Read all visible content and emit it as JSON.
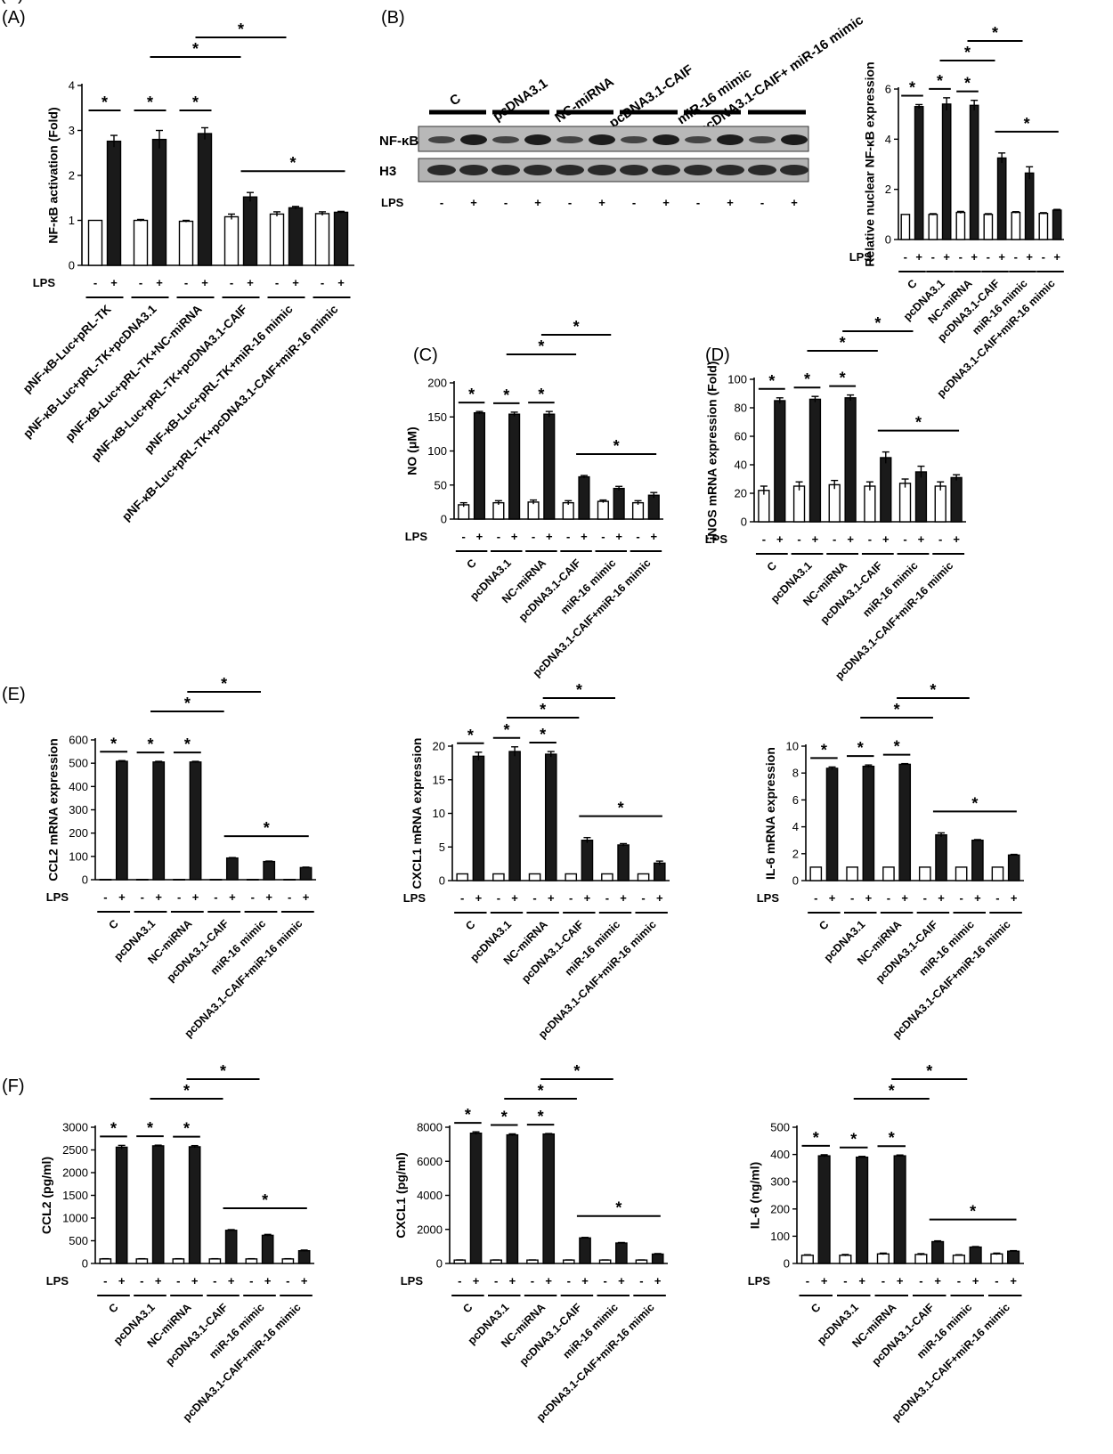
{
  "chart_data": [
    {
      "id": "A",
      "panel_label": "(A)",
      "type": "bar",
      "ylabel": "NF-κB activation (Fold)",
      "ylim": [
        0,
        4
      ],
      "yticks": [
        "0",
        "1",
        "2",
        "3",
        "4"
      ],
      "lps_label": "LPS",
      "lps_minus": "-",
      "lps_plus": "+",
      "categories": [
        "pNF-κB-Luc+pRL-TK",
        "pNF-κB-Luc+pRL-TK+pcDNA3.1",
        "pNF-κB-Luc+pRL-TK+NC-miRNA",
        "pNF-κB-Luc+pRL-TK+pcDNA3.1-CAIF",
        "pNF-κB-Luc+pRL-TK+miR-16 mimic",
        "pNF-κB-Luc+pRL-TK+pcDNA3.1-CAIF+miR-16 mimic"
      ],
      "series": [
        {
          "lps": "-",
          "color": "#ffffff",
          "values": [
            1.0,
            1.0,
            0.98,
            1.08,
            1.14,
            1.15
          ],
          "errors": [
            0.0,
            0.02,
            0.02,
            0.06,
            0.05,
            0.04
          ]
        },
        {
          "lps": "+",
          "color": "#1a1a1a",
          "values": [
            2.76,
            2.8,
            2.93,
            1.52,
            1.28,
            1.18
          ],
          "errors": [
            0.13,
            0.2,
            0.13,
            0.1,
            0.03,
            0.02
          ]
        }
      ],
      "star": "*"
    },
    {
      "id": "B",
      "panel_label": "(B)",
      "type": "bar",
      "ylabel": "Relative nuclear NF-κB expression",
      "ylim": [
        0,
        6
      ],
      "yticks": [
        "0",
        "2",
        "4",
        "6"
      ],
      "lps_label": "LPS",
      "lps_minus": "-",
      "lps_plus": "+",
      "categories": [
        "C",
        "pcDNA3.1",
        "NC-miRNA",
        "pcDNA3.1-CAIF",
        "miR-16 mimic",
        "pcDNA3.1-CAIF+miR-16 mimic"
      ],
      "series": [
        {
          "lps": "-",
          "color": "#ffffff",
          "values": [
            1.0,
            1.0,
            1.08,
            1.0,
            1.08,
            1.04
          ],
          "errors": [
            0.0,
            0.03,
            0.04,
            0.03,
            0.03,
            0.03
          ]
        },
        {
          "lps": "+",
          "color": "#1a1a1a",
          "values": [
            5.3,
            5.4,
            5.35,
            3.25,
            2.65,
            1.17
          ],
          "errors": [
            0.08,
            0.25,
            0.2,
            0.2,
            0.25,
            0.03
          ]
        }
      ],
      "star": "*"
    },
    {
      "id": "C",
      "panel_label": "(C)",
      "type": "bar",
      "ylabel": "NO (μM)",
      "ylim": [
        0,
        200
      ],
      "yticks": [
        "0",
        "50",
        "100",
        "150",
        "200"
      ],
      "lps_label": "LPS",
      "lps_minus": "-",
      "lps_plus": "+",
      "categories": [
        "C",
        "pcDNA3.1",
        "NC-miRNA",
        "pcDNA3.1-CAIF",
        "miR-16 mimic",
        "pcDNA3.1-CAIF+miR-16 mimic"
      ],
      "series": [
        {
          "lps": "-",
          "color": "#ffffff",
          "values": [
            21,
            24,
            25,
            24,
            26,
            24
          ],
          "errors": [
            3,
            3,
            3,
            3,
            2,
            3
          ]
        },
        {
          "lps": "+",
          "color": "#1a1a1a",
          "values": [
            156,
            154,
            154,
            62,
            45,
            35
          ],
          "errors": [
            2,
            3,
            4,
            2,
            3,
            4
          ]
        }
      ],
      "star": "*"
    },
    {
      "id": "D",
      "panel_label": "(D)",
      "type": "bar",
      "ylabel": "iNOS mRNA expression (Fold)",
      "ylim": [
        0,
        100
      ],
      "yticks": [
        "0",
        "20",
        "40",
        "60",
        "80",
        "100"
      ],
      "lps_label": "LPS",
      "lps_minus": "-",
      "lps_plus": "+",
      "categories": [
        "C",
        "pcDNA3.1",
        "NC-miRNA",
        "pcDNA3.1-CAIF",
        "miR-16 mimic",
        "pcDNA3.1-CAIF+miR-16 mimic"
      ],
      "series": [
        {
          "lps": "-",
          "color": "#ffffff",
          "values": [
            22,
            25,
            26,
            25,
            27,
            25
          ],
          "errors": [
            3,
            3,
            3,
            3,
            3,
            3
          ]
        },
        {
          "lps": "+",
          "color": "#1a1a1a",
          "values": [
            85,
            86,
            87,
            45,
            35,
            31
          ],
          "errors": [
            2,
            2,
            2,
            4,
            4,
            2
          ]
        }
      ],
      "star": "*"
    },
    {
      "id": "E1",
      "panel_label": "(E)",
      "type": "bar",
      "ylabel": "CCL2 mRNA expression",
      "ylim": [
        0,
        600
      ],
      "yticks": [
        "0",
        "100",
        "200",
        "300",
        "400",
        "500",
        "600"
      ],
      "lps_label": "LPS",
      "lps_minus": "-",
      "lps_plus": "+",
      "categories": [
        "C",
        "pcDNA3.1",
        "NC-miRNA",
        "pcDNA3.1-CAIF",
        "miR-16 mimic",
        "pcDNA3.1-CAIF+miR-16 mimic"
      ],
      "series": [
        {
          "lps": "-",
          "color": "#ffffff",
          "values": [
            1,
            1,
            1,
            1,
            1,
            1
          ],
          "errors": [
            0,
            0,
            0,
            0,
            0,
            0
          ]
        },
        {
          "lps": "+",
          "color": "#1a1a1a",
          "values": [
            508,
            505,
            505,
            93,
            78,
            52
          ],
          "errors": [
            3,
            3,
            3,
            2,
            2,
            2
          ]
        }
      ],
      "star": "*"
    },
    {
      "id": "E2",
      "panel_label": "",
      "type": "bar",
      "ylabel": "CXCL1 mRNA expression",
      "ylim": [
        0,
        20
      ],
      "yticks": [
        "0",
        "5",
        "10",
        "15",
        "20"
      ],
      "lps_label": "LPS",
      "lps_minus": "-",
      "lps_plus": "+",
      "categories": [
        "C",
        "pcDNA3.1",
        "NC-miRNA",
        "pcDNA3.1-CAIF",
        "miR-16 mimic",
        "pcDNA3.1-CAIF+miR-16 mimic"
      ],
      "series": [
        {
          "lps": "-",
          "color": "#ffffff",
          "values": [
            1,
            1,
            1,
            1,
            1,
            1
          ],
          "errors": [
            0,
            0,
            0,
            0,
            0,
            0
          ]
        },
        {
          "lps": "+",
          "color": "#1a1a1a",
          "values": [
            18.5,
            19.2,
            18.8,
            6.0,
            5.3,
            2.6
          ],
          "errors": [
            0.6,
            0.7,
            0.4,
            0.4,
            0.2,
            0.3
          ]
        }
      ],
      "star": "*"
    },
    {
      "id": "E3",
      "panel_label": "",
      "type": "bar",
      "ylabel": "IL-6 mRNA expression",
      "ylim": [
        0,
        10
      ],
      "yticks": [
        "0",
        "2",
        "4",
        "6",
        "8",
        "10"
      ],
      "lps_label": "LPS",
      "lps_minus": "-",
      "lps_plus": "+",
      "categories": [
        "C",
        "pcDNA3.1",
        "NC-miRNA",
        "pcDNA3.1-CAIF",
        "miR-16 mimic",
        "pcDNA3.1-CAIF+miR-16 mimic"
      ],
      "series": [
        {
          "lps": "-",
          "color": "#ffffff",
          "values": [
            1,
            1,
            1,
            1,
            1,
            1
          ],
          "errors": [
            0,
            0,
            0,
            0,
            0,
            0
          ]
        },
        {
          "lps": "+",
          "color": "#1a1a1a",
          "values": [
            8.35,
            8.5,
            8.65,
            3.4,
            3.0,
            1.9
          ],
          "errors": [
            0.1,
            0.1,
            0.05,
            0.15,
            0.05,
            0.05
          ]
        }
      ],
      "star": "*"
    },
    {
      "id": "F1",
      "panel_label": "(F)",
      "type": "bar",
      "ylabel": "CCL2 (pg/ml)",
      "ylim": [
        0,
        3000
      ],
      "yticks": [
        "0",
        "500",
        "1000",
        "1500",
        "2000",
        "2500",
        "3000"
      ],
      "lps_label": "LPS",
      "lps_minus": "-",
      "lps_plus": "+",
      "categories": [
        "C",
        "pcDNA3.1",
        "NC-miRNA",
        "pcDNA3.1-CAIF",
        "miR-16 mimic",
        "pcDNA3.1-CAIF+miR-16 mimic"
      ],
      "series": [
        {
          "lps": "-",
          "color": "#ffffff",
          "values": [
            100,
            100,
            100,
            100,
            100,
            100
          ],
          "errors": [
            5,
            5,
            5,
            5,
            5,
            5
          ]
        },
        {
          "lps": "+",
          "color": "#1a1a1a",
          "values": [
            2560,
            2590,
            2570,
            730,
            620,
            280
          ],
          "errors": [
            40,
            15,
            25,
            15,
            20,
            15
          ]
        }
      ],
      "star": "*"
    },
    {
      "id": "F2",
      "panel_label": "",
      "type": "bar",
      "ylabel": "CXCL1 (pg/ml)",
      "ylim": [
        0,
        8000
      ],
      "yticks": [
        "0",
        "2000",
        "4000",
        "6000",
        "8000"
      ],
      "lps_label": "LPS",
      "lps_minus": "-",
      "lps_plus": "+",
      "categories": [
        "C",
        "pcDNA3.1",
        "NC-miRNA",
        "pcDNA3.1-CAIF",
        "miR-16 mimic",
        "pcDNA3.1-CAIF+miR-16 mimic"
      ],
      "series": [
        {
          "lps": "-",
          "color": "#ffffff",
          "values": [
            200,
            200,
            200,
            200,
            200,
            200
          ],
          "errors": [
            10,
            10,
            10,
            10,
            10,
            10
          ]
        },
        {
          "lps": "+",
          "color": "#1a1a1a",
          "values": [
            7650,
            7550,
            7600,
            1500,
            1200,
            550
          ],
          "errors": [
            80,
            60,
            30,
            30,
            30,
            30
          ]
        }
      ],
      "star": "*"
    },
    {
      "id": "F3",
      "panel_label": "",
      "type": "bar",
      "ylabel": "IL-6 (ng/ml)",
      "ylim": [
        0,
        500
      ],
      "yticks": [
        "0",
        "100",
        "200",
        "300",
        "400",
        "500"
      ],
      "lps_label": "LPS",
      "lps_minus": "-",
      "lps_plus": "+",
      "categories": [
        "C",
        "pcDNA3.1",
        "NC-miRNA",
        "pcDNA3.1-CAIF",
        "miR-16 mimic",
        "pcDNA3.1-CAIF+miR-16 mimic"
      ],
      "series": [
        {
          "lps": "-",
          "color": "#ffffff",
          "values": [
            30,
            30,
            35,
            33,
            30,
            35
          ],
          "errors": [
            2,
            3,
            3,
            3,
            2,
            3
          ]
        },
        {
          "lps": "+",
          "color": "#1a1a1a",
          "values": [
            395,
            390,
            395,
            80,
            60,
            45
          ],
          "errors": [
            4,
            3,
            3,
            3,
            2,
            2
          ]
        }
      ],
      "star": "*"
    }
  ],
  "blot": {
    "panel_label": "(B)",
    "lanes": [
      "C",
      "pcDNA3.1",
      "NC-miRNA",
      "pcDNA3.1-CAIF",
      "miR-16 mimic",
      "pcDNA3.1-CAIF+ miR-16 mimic"
    ],
    "bands": [
      "NF-κB",
      "H3"
    ],
    "lps_label": "LPS",
    "lps_values": [
      "-",
      "+",
      "-",
      "+",
      "-",
      "+",
      "-",
      "+",
      "-",
      "+",
      "-",
      "+"
    ]
  }
}
